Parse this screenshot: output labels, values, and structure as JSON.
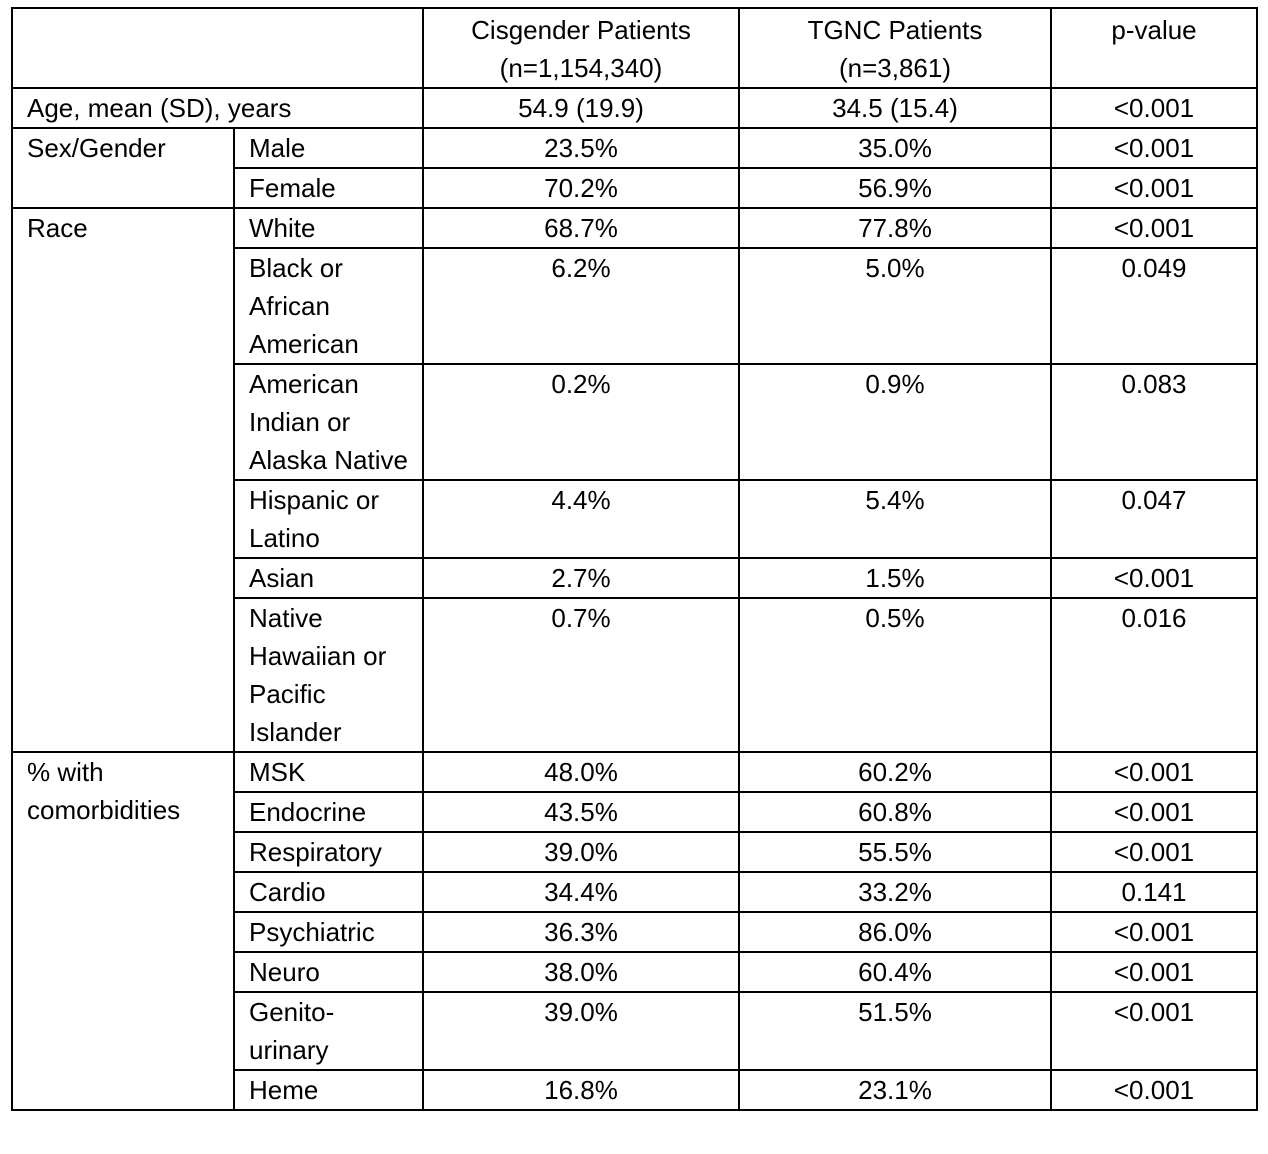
{
  "header": {
    "col_cis": "Cisgender Patients",
    "col_cis_n": "(n=1,154,340)",
    "col_tgnc": "TGNC Patients",
    "col_tgnc_n": "(n=3,861)",
    "col_p": "p-value"
  },
  "age": {
    "label": "Age, mean (SD), years",
    "cis": "54.9 (19.9)",
    "tgnc": "34.5 (15.4)",
    "p": "<0.001"
  },
  "sex": {
    "label": "Sex/Gender",
    "rows": [
      {
        "sub": "Male",
        "cis": "23.5%",
        "tgnc": "35.0%",
        "p": "<0.001"
      },
      {
        "sub": "Female",
        "cis": "70.2%",
        "tgnc": "56.9%",
        "p": "<0.001"
      }
    ]
  },
  "race": {
    "label": "Race",
    "rows": [
      {
        "sub": "White",
        "cis": "68.7%",
        "tgnc": "77.8%",
        "p": "<0.001"
      },
      {
        "sub": "Black or African American",
        "cis": "6.2%",
        "tgnc": "5.0%",
        "p": "0.049"
      },
      {
        "sub": "American Indian or Alaska Native",
        "cis": "0.2%",
        "tgnc": "0.9%",
        "p": "0.083"
      },
      {
        "sub": "Hispanic or Latino",
        "cis": "4.4%",
        "tgnc": "5.4%",
        "p": "0.047"
      },
      {
        "sub": "Asian",
        "cis": "2.7%",
        "tgnc": "1.5%",
        "p": "<0.001"
      },
      {
        "sub": "Native Hawaiian or Pacific Islander",
        "cis": "0.7%",
        "tgnc": "0.5%",
        "p": "0.016"
      }
    ]
  },
  "comorb": {
    "label_line1": "% with",
    "label_line2": "comorbidities",
    "rows": [
      {
        "sub": "MSK",
        "cis": "48.0%",
        "tgnc": "60.2%",
        "p": "<0.001"
      },
      {
        "sub": "Endocrine",
        "cis": "43.5%",
        "tgnc": "60.8%",
        "p": "<0.001"
      },
      {
        "sub": "Respiratory",
        "cis": "39.0%",
        "tgnc": "55.5%",
        "p": "<0.001"
      },
      {
        "sub": "Cardio",
        "cis": "34.4%",
        "tgnc": "33.2%",
        "p": "0.141"
      },
      {
        "sub": "Psychiatric",
        "cis": "36.3%",
        "tgnc": "86.0%",
        "p": "<0.001"
      },
      {
        "sub": "Neuro",
        "cis": "38.0%",
        "tgnc": "60.4%",
        "p": "<0.001"
      },
      {
        "sub": "Genito-urinary",
        "cis": "39.0%",
        "tgnc": "51.5%",
        "p": "<0.001"
      },
      {
        "sub": "Heme",
        "cis": "16.8%",
        "tgnc": "23.1%",
        "p": "<0.001"
      }
    ]
  }
}
